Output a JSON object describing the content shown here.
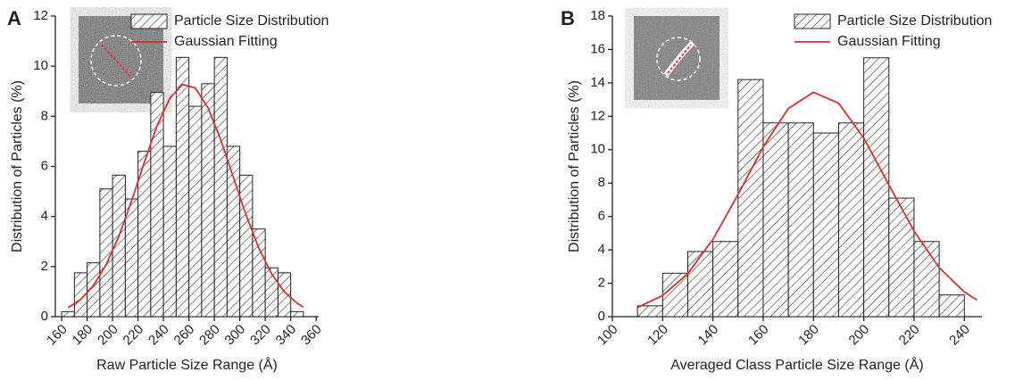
{
  "chart_data": [
    {
      "type": "histogram",
      "panel_label": "A",
      "x_label": "Raw Particle Size Range (Å)",
      "y_label": "Distribution of Particles (%)",
      "xlim": [
        155,
        362
      ],
      "xticks": [
        160,
        180,
        200,
        220,
        240,
        260,
        280,
        300,
        320,
        340,
        360
      ],
      "ylim": [
        0,
        12
      ],
      "yticks": [
        0,
        2,
        4,
        6,
        8,
        10,
        12
      ],
      "legend": "upper right",
      "series": [
        {
          "name": "Particle Size Distribution",
          "type": "histogram",
          "color": "#222222",
          "bins": [
            160,
            170,
            180,
            190,
            200,
            210,
            220,
            230,
            240,
            250,
            260,
            270,
            280,
            290,
            300,
            310,
            320,
            330,
            340,
            350
          ],
          "values": [
            0.2,
            1.75,
            2.15,
            5.1,
            5.65,
            4.7,
            6.6,
            8.95,
            6.8,
            10.35,
            8.4,
            9.3,
            10.35,
            6.8,
            5.65,
            3.5,
            1.95,
            1.75,
            0.2
          ]
        },
        {
          "name": "Gaussian Fitting",
          "type": "line",
          "color": "#d9302c",
          "x": [
            165,
            175,
            185,
            195,
            205,
            215,
            225,
            235,
            245,
            255,
            265,
            275,
            285,
            295,
            305,
            315,
            325,
            335,
            345,
            350
          ],
          "values": [
            0.36,
            0.69,
            1.25,
            2.08,
            3.22,
            4.63,
            6.17,
            7.62,
            8.72,
            9.27,
            9.13,
            8.34,
            7.07,
            5.55,
            4.04,
            2.73,
            1.71,
            0.99,
            0.54,
            0.38
          ]
        }
      ]
    },
    {
      "type": "histogram",
      "panel_label": "B",
      "x_label": "Averaged Class Particle Size Range (Å)",
      "y_label": "Distribution of Particles (%)",
      "xlim": [
        100,
        247
      ],
      "xticks": [
        100,
        120,
        140,
        160,
        180,
        200,
        220,
        240
      ],
      "ylim": [
        0,
        18
      ],
      "yticks": [
        0,
        2,
        4,
        6,
        8,
        10,
        12,
        14,
        16,
        18
      ],
      "legend": "upper right",
      "series": [
        {
          "name": "Particle Size Distribution",
          "type": "histogram",
          "color": "#222222",
          "bins": [
            110,
            120,
            130,
            140,
            150,
            160,
            170,
            180,
            190,
            200,
            210,
            220,
            230,
            240
          ],
          "values": [
            0.65,
            2.6,
            3.9,
            4.5,
            14.2,
            11.6,
            11.6,
            11.0,
            11.6,
            15.5,
            7.1,
            4.5,
            1.3
          ]
        },
        {
          "name": "Gaussian Fitting",
          "type": "line",
          "color": "#d9302c",
          "x": [
            110,
            120,
            130,
            140,
            150,
            160,
            170,
            180,
            190,
            200,
            210,
            220,
            230,
            240,
            245
          ],
          "values": [
            0.55,
            1.27,
            2.58,
            4.63,
            7.31,
            10.17,
            12.46,
            13.44,
            12.78,
            10.7,
            7.89,
            5.12,
            2.93,
            1.48,
            1.0
          ]
        }
      ]
    }
  ]
}
